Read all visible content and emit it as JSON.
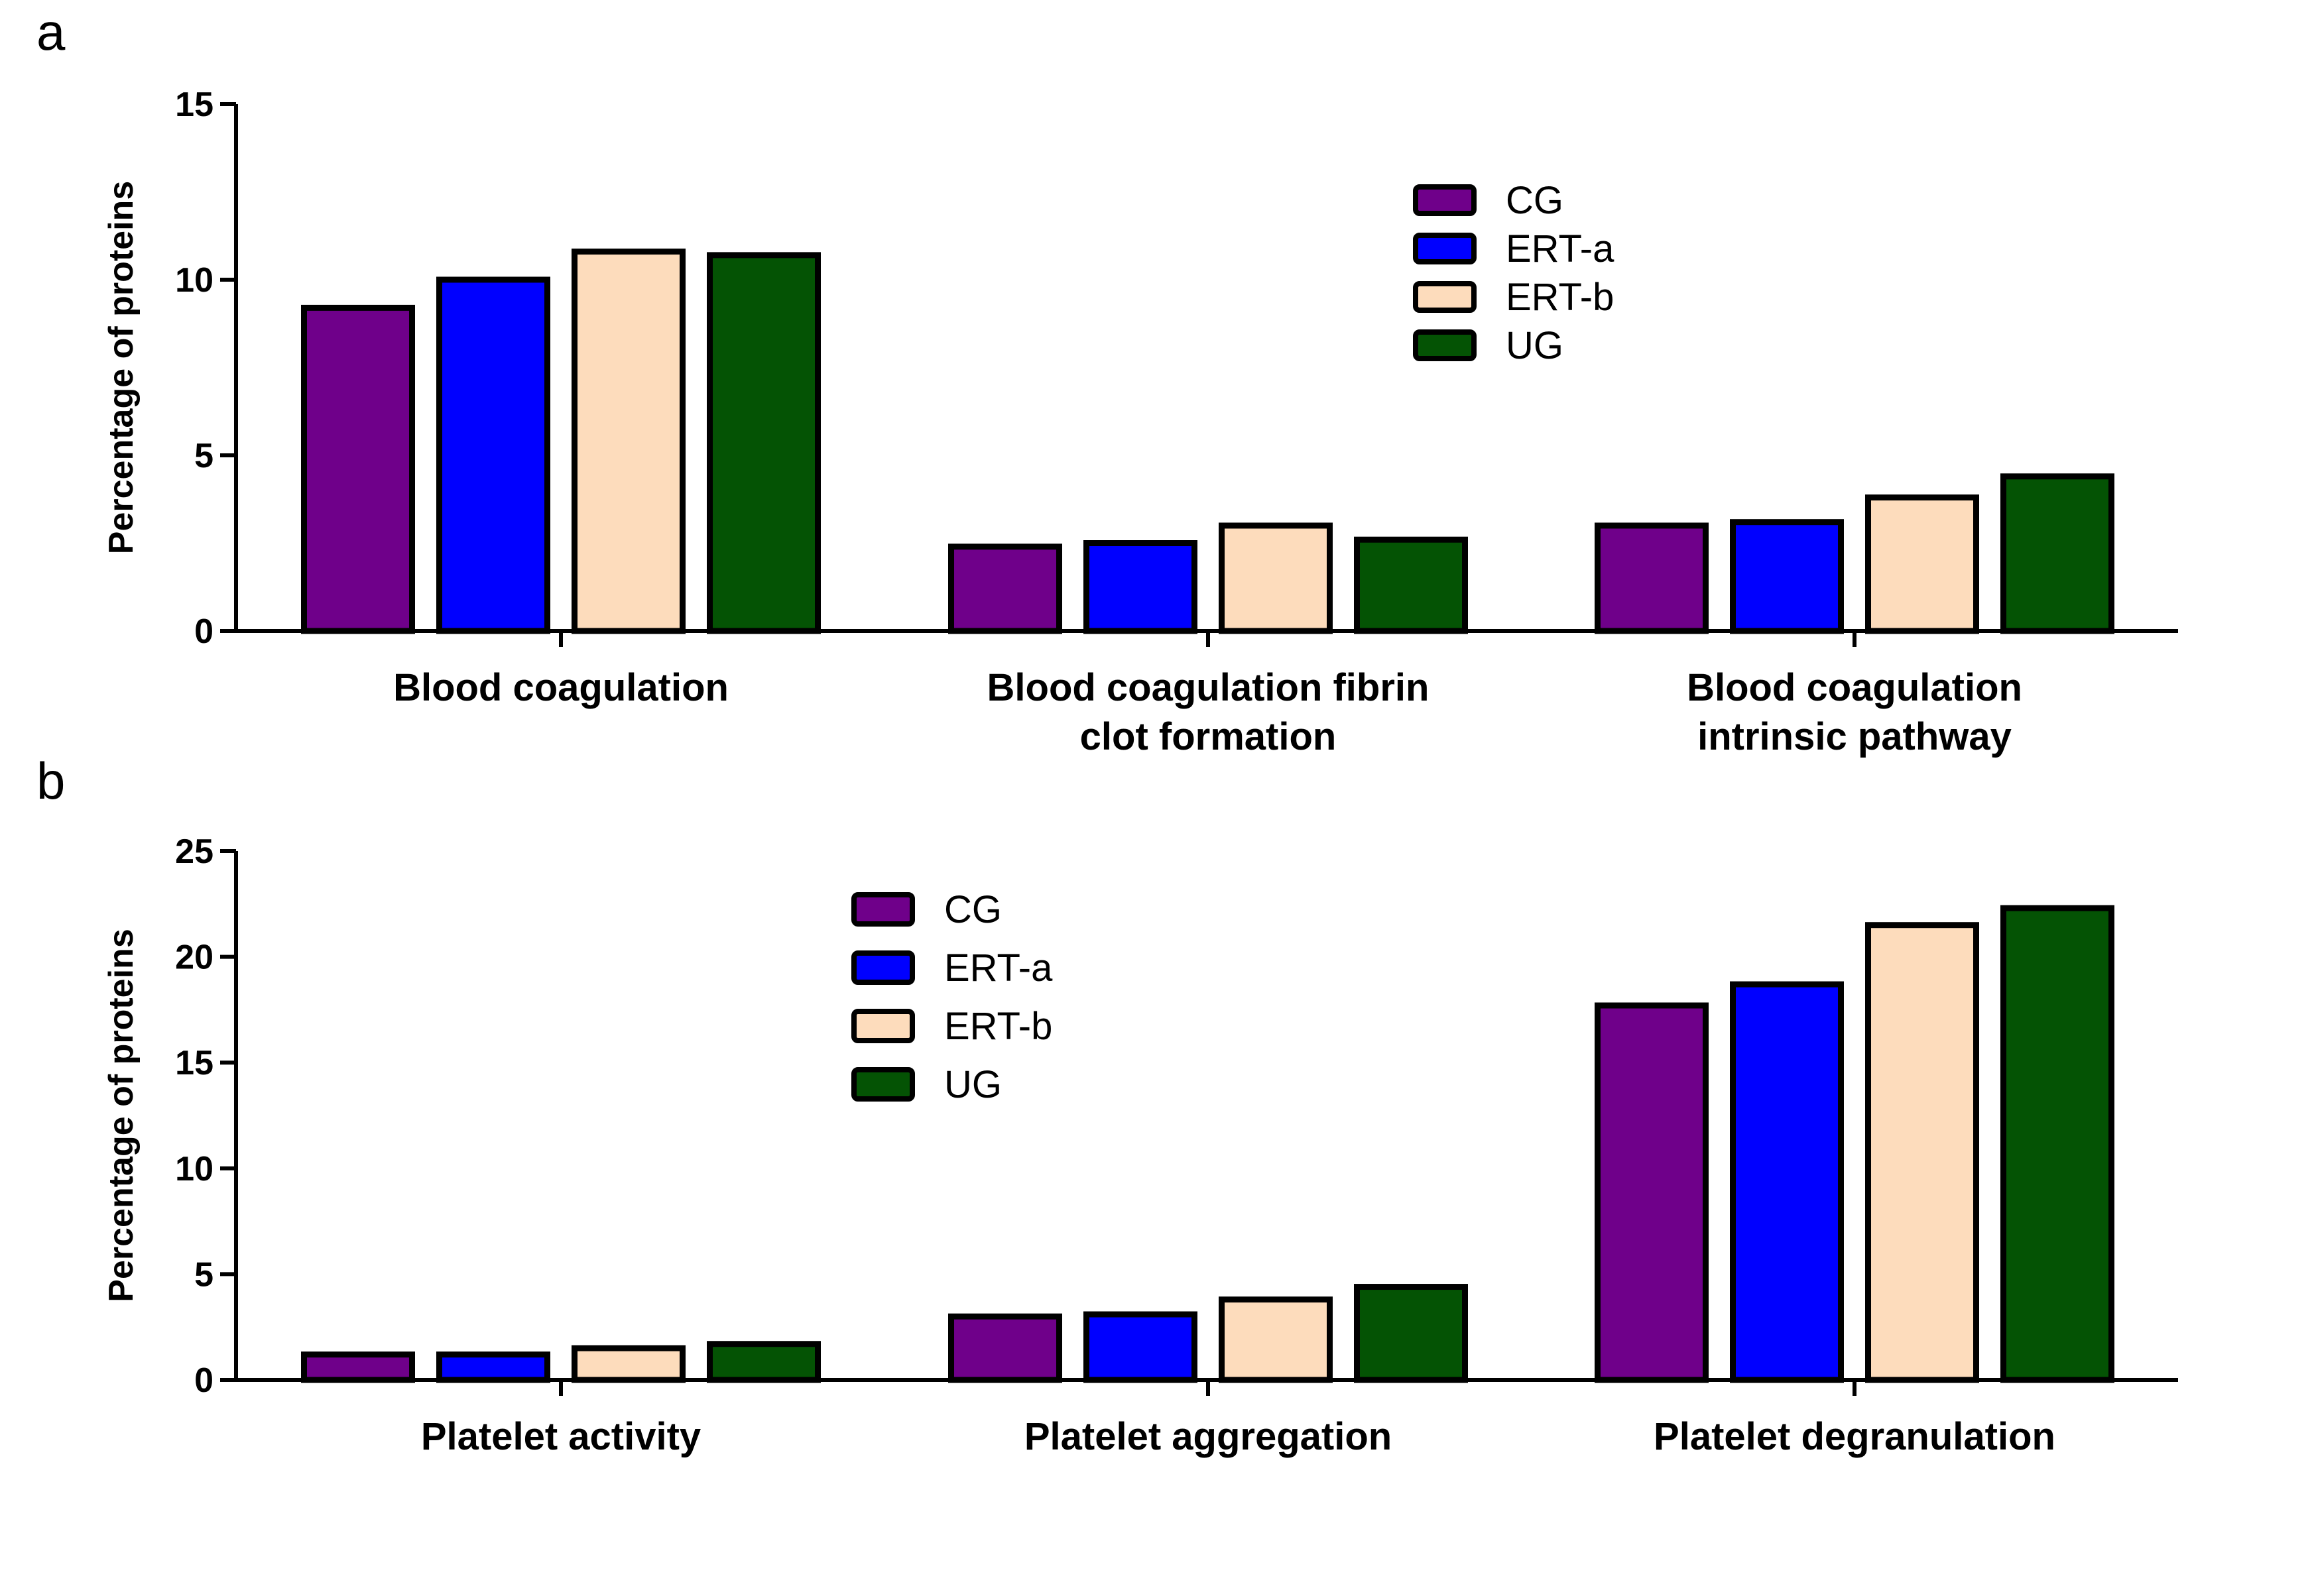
{
  "chart_data": [
    {
      "type": "bar",
      "panel_label": "a",
      "categories": [
        [
          "Blood coagulation"
        ],
        [
          "Blood coagulation fibrin",
          "clot formation"
        ],
        [
          "Blood coagulation",
          "intrinsic pathway"
        ]
      ],
      "series": [
        {
          "name": "CG",
          "color": "#6f008a",
          "values": [
            9.2,
            2.4,
            3.0
          ]
        },
        {
          "name": "ERT-a",
          "color": "#0000ff",
          "values": [
            10.0,
            2.5,
            3.1
          ]
        },
        {
          "name": "ERT-b",
          "color": "#fddcbc",
          "values": [
            10.8,
            3.0,
            3.8
          ]
        },
        {
          "name": "UG",
          "color": "#045304",
          "values": [
            10.7,
            2.6,
            4.4
          ]
        }
      ],
      "title": "",
      "xlabel": "",
      "ylabel": "Percentage of proteins",
      "ylim": [
        0,
        15
      ],
      "yticks": [
        0,
        5,
        10,
        15
      ],
      "legend_position": "upper-right"
    },
    {
      "type": "bar",
      "panel_label": "b",
      "categories": [
        [
          "Platelet activity"
        ],
        [
          "Platelet aggregation"
        ],
        [
          "Platelet degranulation"
        ]
      ],
      "series": [
        {
          "name": "CG",
          "color": "#6f008a",
          "values": [
            1.2,
            3.0,
            17.7
          ]
        },
        {
          "name": "ERT-a",
          "color": "#0000ff",
          "values": [
            1.2,
            3.1,
            18.7
          ]
        },
        {
          "name": "ERT-b",
          "color": "#fddcbc",
          "values": [
            1.5,
            3.8,
            21.5
          ]
        },
        {
          "name": "UG",
          "color": "#045304",
          "values": [
            1.7,
            4.4,
            22.3
          ]
        }
      ],
      "title": "",
      "xlabel": "",
      "ylabel": "Percentage of proteins",
      "ylim": [
        0,
        25
      ],
      "yticks": [
        0,
        5,
        10,
        15,
        20,
        25
      ],
      "legend_position": "upper-center"
    }
  ]
}
